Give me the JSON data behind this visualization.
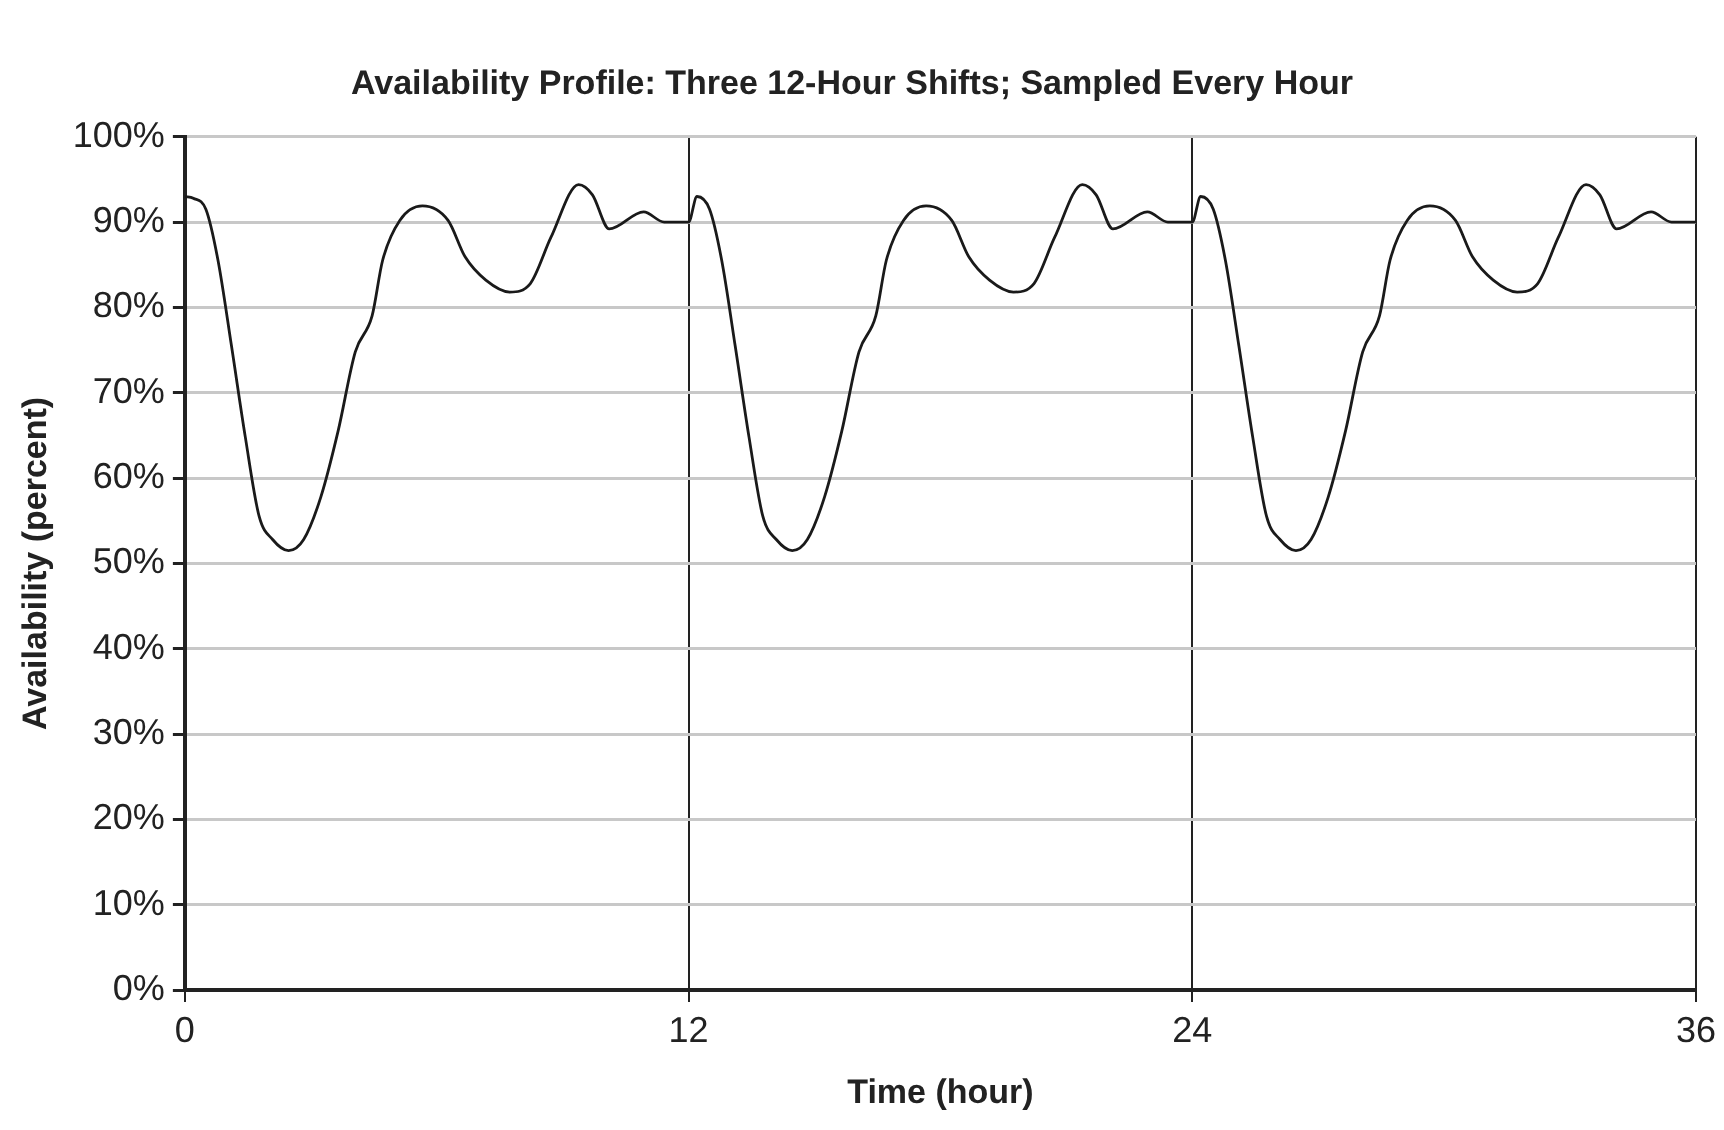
{
  "chart_data": {
    "type": "line",
    "title": "Availability Profile: Three 12-Hour Shifts; Sampled Every Hour",
    "xlabel": "Time (hour)",
    "ylabel": "Availability (percent)",
    "series": [
      {
        "color": "#1a1a1a",
        "x": [
          0,
          0.2,
          0.5,
          0.79,
          1.11,
          1.44,
          1.77,
          2.09,
          2.47,
          2.83,
          3.24,
          3.65,
          4.06,
          4.46,
          4.71,
          5.12,
          5.66,
          6.27,
          6.68,
          7.17,
          7.74,
          8.23,
          8.72,
          9.38,
          9.71,
          10.11,
          10.93,
          11.42,
          12,
          12.2,
          12.5,
          12.79,
          13.11,
          13.44,
          13.77,
          14.09,
          14.47,
          14.83,
          15.24,
          15.65,
          16.06,
          16.46,
          16.71,
          17.12,
          17.66,
          18.27,
          18.68,
          19.17,
          19.74,
          20.23,
          20.72,
          21.38,
          21.71,
          22.11,
          22.93,
          23.42,
          24,
          24.2,
          24.5,
          24.79,
          25.11,
          25.44,
          25.77,
          26.09,
          26.47,
          26.83,
          27.24,
          27.65,
          28.06,
          28.46,
          28.71,
          29.12,
          29.66,
          30.27,
          30.68,
          31.17,
          31.74,
          32.23,
          32.72,
          33.38,
          33.71,
          34.11,
          34.93,
          35.42,
          36
        ],
        "values": [
          93,
          92.8,
          91.5,
          85.5,
          75.5,
          64.8,
          55.5,
          52.8,
          51.5,
          52.8,
          57.8,
          65.5,
          74.8,
          79,
          85.5,
          90.2,
          91.9,
          90.2,
          85.9,
          83.2,
          81.8,
          82.8,
          88.2,
          94.4,
          93.2,
          89.2,
          91.2,
          90,
          90,
          93,
          91.5,
          85.5,
          75.5,
          64.8,
          55.5,
          52.8,
          51.5,
          52.8,
          57.8,
          65.5,
          74.8,
          79,
          85.5,
          90.2,
          91.9,
          90.2,
          85.9,
          83.2,
          81.8,
          82.8,
          88.2,
          94.4,
          93.2,
          89.2,
          91.2,
          90,
          90,
          93,
          91.5,
          85.5,
          75.5,
          64.8,
          55.5,
          52.8,
          51.5,
          52.8,
          57.8,
          65.5,
          74.8,
          79,
          85.5,
          90.2,
          91.9,
          90.2,
          85.9,
          83.2,
          81.8,
          82.8,
          88.2,
          94.4,
          93.2,
          89.2,
          91.2,
          90,
          90
        ]
      }
    ],
    "xlim": [
      0,
      36
    ],
    "xticks": [
      0,
      12,
      24,
      36
    ],
    "ylim": [
      0,
      100
    ],
    "yticks": [
      {
        "value": 0,
        "label": "0%"
      },
      {
        "value": 10,
        "label": "10%"
      },
      {
        "value": 20,
        "label": "20%"
      },
      {
        "value": 30,
        "label": "30%"
      },
      {
        "value": 40,
        "label": "40%"
      },
      {
        "value": 50,
        "label": "50%"
      },
      {
        "value": 60,
        "label": "60%"
      },
      {
        "value": 70,
        "label": "70%"
      },
      {
        "value": 80,
        "label": "80%"
      },
      {
        "value": 90,
        "label": "90%"
      },
      {
        "value": 100,
        "label": "100%"
      }
    ],
    "grid": true,
    "legend": false,
    "marker": "none",
    "line_style": "solid"
  }
}
